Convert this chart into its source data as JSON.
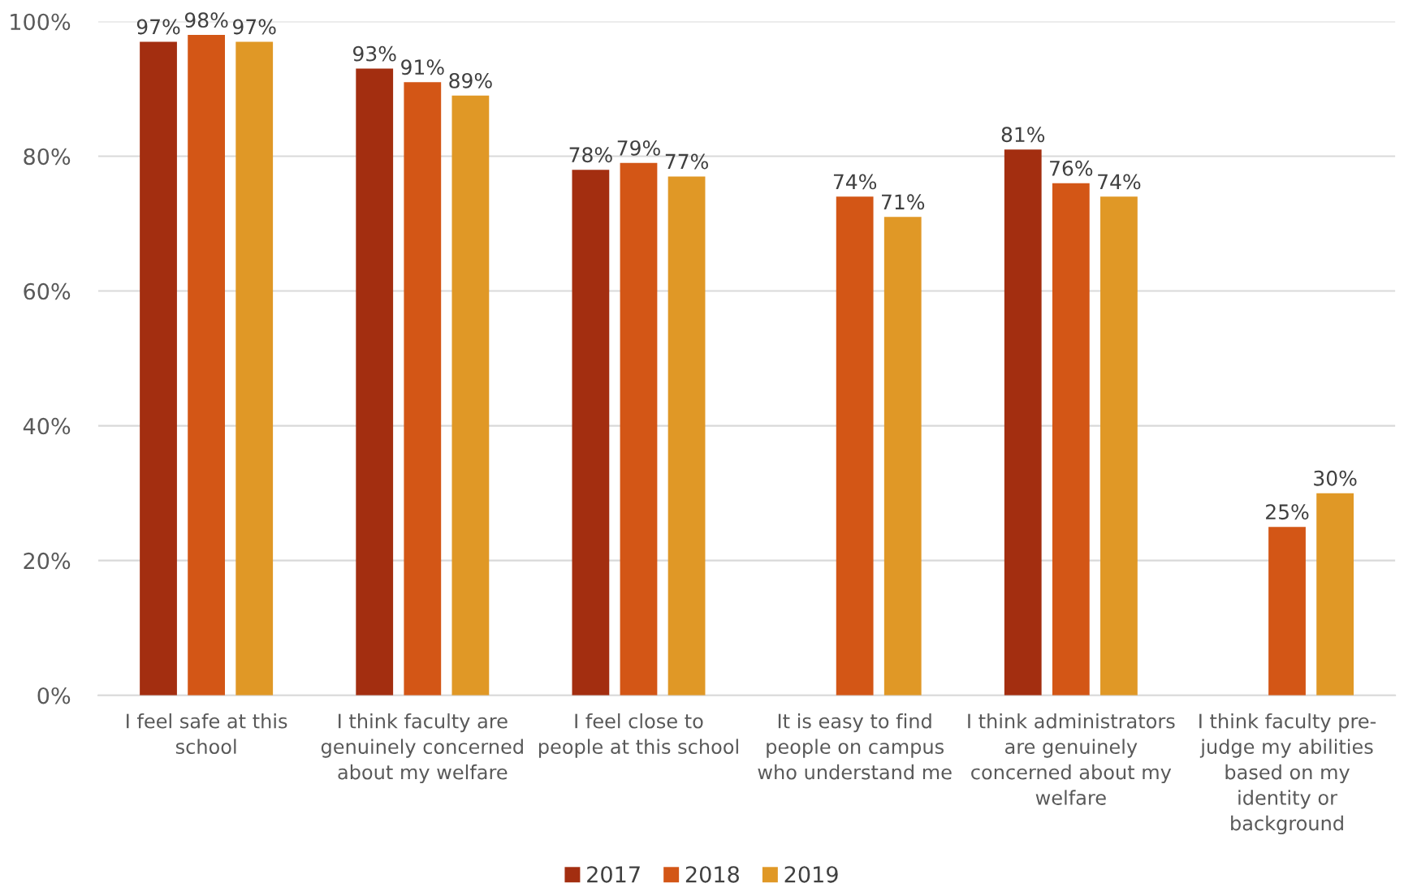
{
  "chart_data": {
    "type": "bar",
    "categories": [
      "I feel safe at this\nschool",
      "I think faculty are\ngenuinely concerned\nabout my welfare",
      "I feel close to\npeople at this school",
      "It is easy to find\npeople on campus\nwho understand me",
      "I think administrators\nare genuinely\nconcerned about my\nwelfare",
      "I think faculty pre-\njudge my abilities\nbased on my\nidentity or\nbackground"
    ],
    "series": [
      {
        "name": "2017",
        "color": "#a32e10",
        "values": [
          97,
          93,
          78,
          null,
          81,
          null
        ],
        "value_labels": [
          "97%",
          "93%",
          "78%",
          null,
          "81%",
          null
        ]
      },
      {
        "name": "2018",
        "color": "#d35616",
        "values": [
          98,
          91,
          79,
          74,
          76,
          25
        ],
        "value_labels": [
          "98%",
          "91%",
          "79%",
          "74%",
          "76%",
          "25%"
        ]
      },
      {
        "name": "2019",
        "color": "#e09826",
        "values": [
          97,
          89,
          77,
          71,
          74,
          30
        ],
        "value_labels": [
          "97%",
          "89%",
          "77%",
          "71%",
          "74%",
          "30%"
        ]
      }
    ],
    "ylim": [
      0,
      100
    ],
    "yticks": [
      {
        "value": 0,
        "label": "0%"
      },
      {
        "value": 20,
        "label": "20%"
      },
      {
        "value": 40,
        "label": "40%"
      },
      {
        "value": 60,
        "label": "60%"
      },
      {
        "value": 80,
        "label": "80%"
      },
      {
        "value": 100,
        "label": "100%"
      }
    ],
    "grid": "y",
    "legend": "bottom"
  }
}
